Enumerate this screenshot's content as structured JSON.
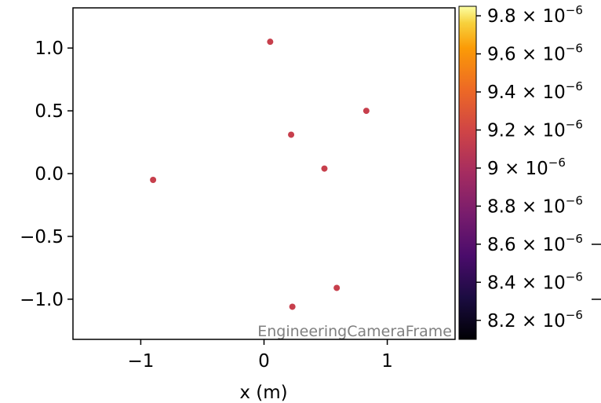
{
  "chart_data": {
    "type": "scatter",
    "xlabel": "x  (m)",
    "ylabel": "",
    "xlim": [
      -1.55,
      1.55
    ],
    "ylim": [
      -1.32,
      1.32
    ],
    "x_ticks": [
      {
        "value": -1,
        "label": "−1"
      },
      {
        "value": 0,
        "label": "0"
      },
      {
        "value": 1,
        "label": "1"
      }
    ],
    "y_ticks": [
      {
        "value": 1.0,
        "label": "1.0"
      },
      {
        "value": 0.5,
        "label": "0.5"
      },
      {
        "value": 0.0,
        "label": "0.0"
      },
      {
        "value": -0.5,
        "label": "−0.5"
      },
      {
        "value": -1.0,
        "label": "−1.0"
      }
    ],
    "points": [
      {
        "x": 0.05,
        "y": 1.05
      },
      {
        "x": 0.83,
        "y": 0.5
      },
      {
        "x": 0.22,
        "y": 0.31
      },
      {
        "x": 0.49,
        "y": 0.04
      },
      {
        "x": -0.9,
        "y": -0.05
      },
      {
        "x": 0.59,
        "y": -0.91
      },
      {
        "x": 0.23,
        "y": -1.06
      }
    ],
    "point_color": "#c73f4c",
    "annotation": "EngineeringCameraFrame",
    "grid": false,
    "colorbar": {
      "colormap": "inferno",
      "range": [
        8.1e-06,
        9.85e-06
      ],
      "ticks": [
        {
          "value": 8.2e-06,
          "mantissa": "8.2",
          "exponent": "−6"
        },
        {
          "value": 8.4e-06,
          "mantissa": "8.4",
          "exponent": "−6"
        },
        {
          "value": 8.6e-06,
          "mantissa": "8.6",
          "exponent": "−6"
        },
        {
          "value": 8.8e-06,
          "mantissa": "8.8",
          "exponent": "−6"
        },
        {
          "value": 9e-06,
          "mantissa": "9",
          "exponent": "−6"
        },
        {
          "value": 9.2e-06,
          "mantissa": "9.2",
          "exponent": "−6"
        },
        {
          "value": 9.4e-06,
          "mantissa": "9.4",
          "exponent": "−6"
        },
        {
          "value": 9.6e-06,
          "mantissa": "9.6",
          "exponent": "−6"
        },
        {
          "value": 9.8e-06,
          "mantissa": "9.8",
          "exponent": "−6"
        }
      ]
    }
  }
}
